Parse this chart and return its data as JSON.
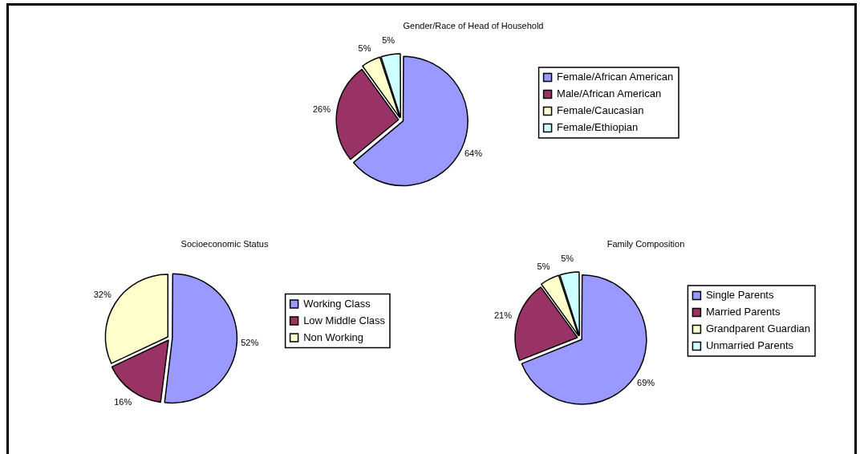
{
  "chart_data": [
    {
      "type": "pie",
      "title": "Gender/Race of Head of Household",
      "categories": [
        "Female/African American",
        "Male/African American",
        "Female/Caucasian",
        "Female/Ethiopian"
      ],
      "values": [
        64,
        26,
        5,
        5
      ],
      "colors": [
        "#9999ff",
        "#993366",
        "#ffffcc",
        "#ccffff"
      ],
      "value_labels": [
        "64%",
        "26%",
        "5%",
        "5%"
      ],
      "legend": "right"
    },
    {
      "type": "pie",
      "title": "Socioeconomic Status",
      "categories": [
        "Working Class",
        "Low Middle Class",
        "Non Working"
      ],
      "values": [
        52,
        16,
        32
      ],
      "colors": [
        "#9999ff",
        "#993366",
        "#ffffcc"
      ],
      "value_labels": [
        "52%",
        "16%",
        "32%"
      ],
      "legend": "right"
    },
    {
      "type": "pie",
      "title": "Family Composition",
      "categories": [
        "Single Parents",
        "Married Parents",
        "Grandparent Guardian",
        "Unmarried Parents"
      ],
      "values": [
        69,
        21,
        5,
        5
      ],
      "colors": [
        "#9999ff",
        "#993366",
        "#ffffcc",
        "#ccffff"
      ],
      "value_labels": [
        "69%",
        "21%",
        "5%",
        "5%"
      ],
      "legend": "right"
    }
  ]
}
